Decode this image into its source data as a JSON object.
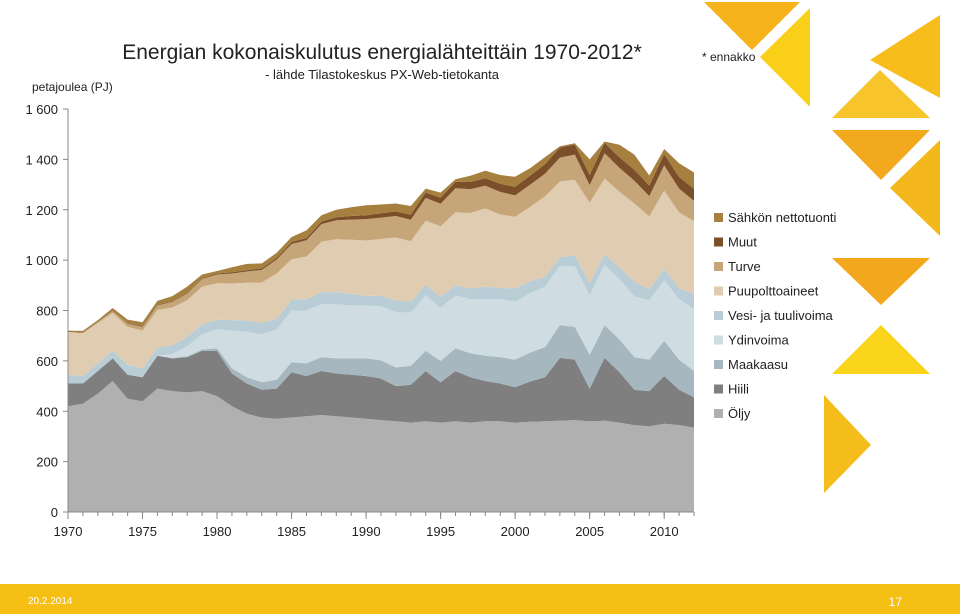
{
  "chart_data": {
    "type": "area",
    "stacked": true,
    "title": "Energian kokonaiskulutus energialähteittäin 1970-2012*",
    "subtitle": "- lähde Tilastokeskus PX-Web-tietokanta",
    "note": "* ennakko",
    "ylabel": "petajoulea (PJ)",
    "xlabel": "",
    "ylim": [
      0,
      1600
    ],
    "yticks": [
      0,
      200,
      400,
      600,
      800,
      1000,
      1200,
      1400,
      1600
    ],
    "ytick_labels": [
      "0",
      "200",
      "400",
      "600",
      "800",
      "1 000",
      "1 200",
      "1 400",
      "1 600"
    ],
    "xlim": [
      1970,
      2012
    ],
    "xticks": [
      1970,
      1975,
      1980,
      1985,
      1990,
      1995,
      2000,
      2005,
      2010
    ],
    "grid": false,
    "legend_position": "right",
    "x": [
      1970,
      1971,
      1972,
      1973,
      1974,
      1975,
      1976,
      1977,
      1978,
      1979,
      1980,
      1981,
      1982,
      1983,
      1984,
      1985,
      1986,
      1987,
      1988,
      1989,
      1990,
      1991,
      1992,
      1993,
      1994,
      1995,
      1996,
      1997,
      1998,
      1999,
      2000,
      2001,
      2002,
      2003,
      2004,
      2005,
      2006,
      2007,
      2008,
      2009,
      2010,
      2011,
      2012
    ],
    "series": [
      {
        "name": "Öljy",
        "color": "#b0b0b0",
        "values": [
          420,
          430,
          470,
          520,
          450,
          440,
          490,
          480,
          475,
          480,
          460,
          420,
          390,
          375,
          370,
          375,
          380,
          385,
          380,
          375,
          370,
          365,
          360,
          355,
          360,
          355,
          360,
          355,
          360,
          360,
          355,
          358,
          360,
          362,
          365,
          360,
          362,
          355,
          345,
          340,
          350,
          345,
          335
        ]
      },
      {
        "name": "Hiili",
        "color": "#7f7f7f",
        "values": [
          90,
          80,
          90,
          90,
          95,
          95,
          130,
          130,
          140,
          160,
          180,
          130,
          120,
          110,
          120,
          180,
          160,
          175,
          170,
          170,
          170,
          165,
          140,
          150,
          200,
          160,
          200,
          180,
          160,
          150,
          140,
          160,
          175,
          250,
          240,
          130,
          250,
          200,
          140,
          140,
          190,
          140,
          120
        ]
      },
      {
        "name": "Maakaasu",
        "color": "#a6b7c0",
        "values": [
          0,
          0,
          0,
          0,
          0,
          0,
          0,
          2,
          3,
          5,
          10,
          20,
          25,
          30,
          35,
          40,
          50,
          55,
          60,
          65,
          70,
          72,
          74,
          76,
          80,
          85,
          90,
          95,
          100,
          105,
          110,
          115,
          120,
          130,
          130,
          135,
          130,
          130,
          130,
          125,
          140,
          120,
          105
        ]
      },
      {
        "name": "Ydinvoima",
        "color": "#cfdde3",
        "values": [
          0,
          0,
          0,
          0,
          0,
          0,
          0,
          15,
          40,
          60,
          75,
          150,
          180,
          190,
          200,
          205,
          210,
          210,
          215,
          210,
          210,
          215,
          220,
          210,
          220,
          210,
          210,
          215,
          225,
          230,
          230,
          235,
          240,
          235,
          240,
          235,
          240,
          240,
          240,
          235,
          240,
          240,
          245
        ]
      },
      {
        "name": "Vesi- ja tuulivoima",
        "color": "#b9cdd6",
        "values": [
          35,
          30,
          30,
          30,
          40,
          35,
          32,
          35,
          38,
          40,
          38,
          42,
          45,
          46,
          42,
          44,
          44,
          48,
          48,
          46,
          38,
          42,
          46,
          44,
          42,
          44,
          40,
          42,
          50,
          46,
          52,
          48,
          38,
          35,
          44,
          48,
          42,
          46,
          60,
          44,
          46,
          44,
          60
        ]
      },
      {
        "name": "Puupolttoaineet",
        "color": "#e0ccb0",
        "values": [
          170,
          170,
          160,
          150,
          150,
          150,
          150,
          150,
          145,
          150,
          145,
          145,
          150,
          160,
          180,
          160,
          170,
          200,
          210,
          215,
          220,
          225,
          250,
          240,
          255,
          280,
          290,
          300,
          310,
          290,
          285,
          295,
          320,
          300,
          300,
          320,
          300,
          300,
          310,
          290,
          310,
          300,
          290
        ]
      },
      {
        "name": "Turve",
        "color": "#c6a679",
        "values": [
          0,
          2,
          5,
          8,
          12,
          15,
          18,
          22,
          26,
          30,
          35,
          40,
          45,
          50,
          55,
          60,
          65,
          70,
          75,
          80,
          85,
          85,
          85,
          85,
          90,
          90,
          95,
          95,
          90,
          90,
          85,
          88,
          90,
          95,
          100,
          70,
          100,
          95,
          90,
          80,
          100,
          95,
          80
        ]
      },
      {
        "name": "Muut",
        "color": "#7b4f2a",
        "values": [
          2,
          2,
          2,
          2,
          2,
          3,
          3,
          3,
          3,
          3,
          4,
          5,
          5,
          6,
          7,
          8,
          9,
          10,
          12,
          14,
          15,
          17,
          18,
          20,
          22,
          24,
          26,
          28,
          30,
          32,
          34,
          36,
          38,
          40,
          40,
          40,
          42,
          42,
          44,
          42,
          45,
          46,
          48
        ]
      },
      {
        "name": "Sähkön nettotuonti",
        "color": "#a5803e",
        "values": [
          3,
          5,
          5,
          10,
          15,
          15,
          15,
          20,
          25,
          15,
          10,
          20,
          25,
          20,
          20,
          20,
          30,
          25,
          30,
          35,
          40,
          35,
          32,
          35,
          15,
          20,
          10,
          25,
          30,
          35,
          40,
          30,
          28,
          5,
          5,
          62,
          5,
          50,
          60,
          40,
          20,
          55,
          65
        ]
      }
    ]
  },
  "slide": {
    "date": "20.2.2014",
    "page_number": "17",
    "accent_color": "#f5bf14"
  }
}
